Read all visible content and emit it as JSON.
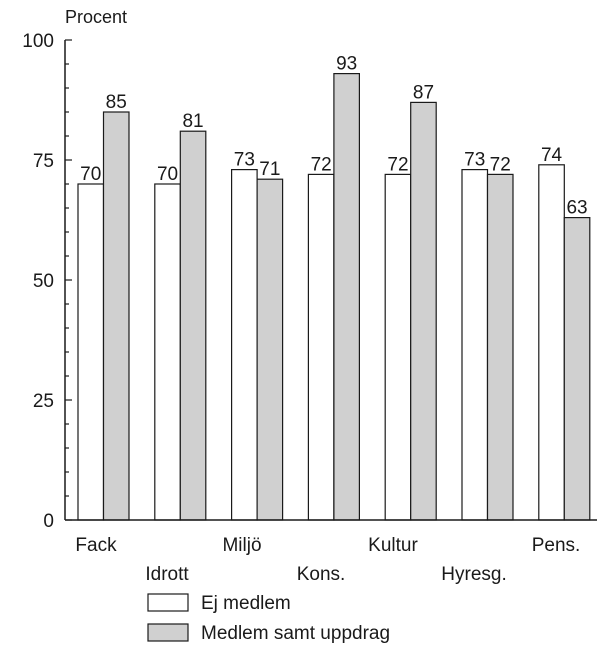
{
  "chart_data": {
    "type": "bar",
    "ylabel": "Procent",
    "ylim": [
      0,
      100
    ],
    "yticks": [
      0,
      25,
      50,
      75,
      100
    ],
    "grid": false,
    "legend_position": "bottom",
    "categories": [
      "Fack",
      "Idrott",
      "Miljö",
      "Kons.",
      "Kultur",
      "Hyresg.",
      "Pens."
    ],
    "series": [
      {
        "name": "Ej medlem",
        "color": "#ffffff",
        "values": [
          70,
          70,
          73,
          72,
          72,
          73,
          74
        ]
      },
      {
        "name": "Medlem samt uppdrag",
        "color": "#d0d0d0",
        "values": [
          85,
          81,
          71,
          93,
          87,
          72,
          63
        ]
      }
    ]
  }
}
